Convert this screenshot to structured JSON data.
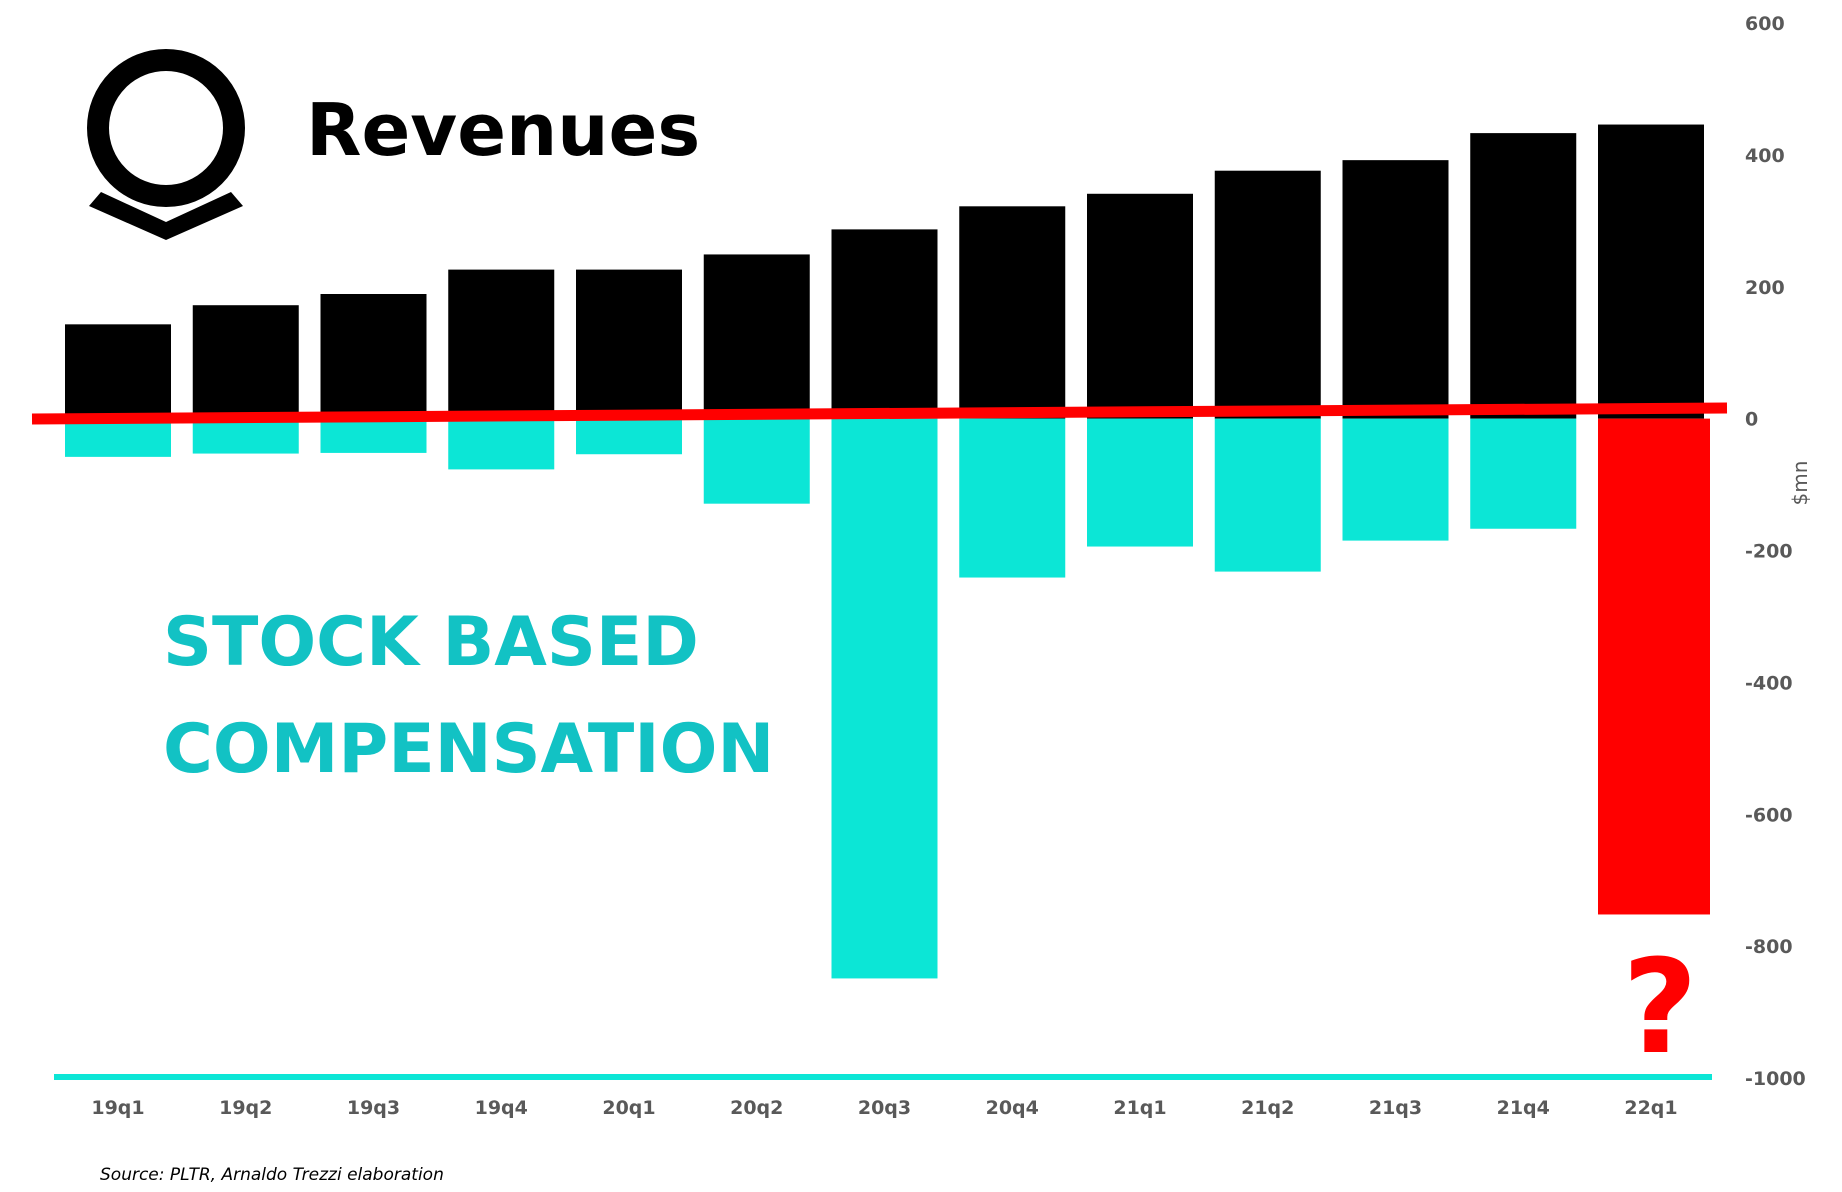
{
  "chart_data": {
    "type": "bar",
    "categories": [
      "19q1",
      "19q2",
      "19q3",
      "19q4",
      "20q1",
      "20q2",
      "20q3",
      "20q4",
      "21q1",
      "21q2",
      "21q3",
      "21q4",
      "22q1"
    ],
    "series": [
      {
        "name": "Revenues",
        "color": "#000000",
        "values": [
          143,
          172,
          189,
          226,
          226,
          249,
          287,
          322,
          341,
          376,
          392,
          433,
          446
        ]
      },
      {
        "name": "STOCK BASED COMPENSATION",
        "color": "#0ce6d6",
        "values": [
          -58,
          -53,
          -52,
          -77,
          -54,
          -129,
          -849,
          -241,
          -194,
          -232,
          -185,
          -167,
          null
        ]
      }
    ],
    "highlight": {
      "category": "22q1",
      "value": -752,
      "color": "#ff0000",
      "annotation": "?"
    },
    "ylabel": "$mn",
    "ylim": [
      -1000,
      600
    ],
    "yticks": [
      600,
      400,
      200,
      0,
      -200,
      -400,
      -600,
      -800,
      -1000
    ],
    "ytick_labels": [
      "600",
      "400",
      "200",
      "0",
      "-200",
      "-400",
      "-600",
      "-800",
      "-1000"
    ],
    "y_axis_position": "right",
    "grid": false,
    "legend": "none (series named by large in-chart titles)"
  },
  "titles": {
    "revenues": "Revenues",
    "sbc_line1": "STOCK BASED",
    "sbc_line2": "COMPENSATION"
  },
  "source": "Source: PLTR, Arnaldo Trezzi elaboration",
  "colors": {
    "revenue_bar": "#000000",
    "sbc_bar": "#0ce6d6",
    "highlight": "#ff0000",
    "sbc_title": "#12c2c4",
    "baseline_bottom": "#0ce6d6",
    "zero_line": "#ff0000"
  },
  "icons": {
    "logo": "palantir-logo-icon"
  }
}
